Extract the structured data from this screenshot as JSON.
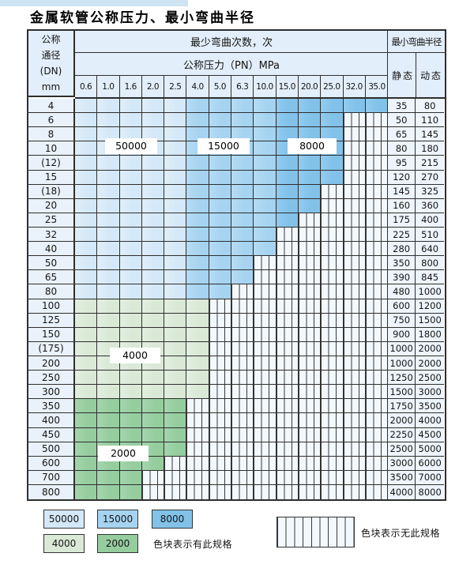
{
  "title": "金属软管公称压力、最小弯曲半径",
  "colors": {
    "blue_50000": "#d5e8f7",
    "blue_15000": "#a6d4f0",
    "blue_8000": "#82c2e9",
    "green_4000": "#d9e9d6",
    "green_2000": "#96cd9f",
    "hatch_bg": "#f3f8fc",
    "header_bg": "#e2eef9",
    "dn_bg": "#e9f2fa",
    "value_bg": "#edf4fb",
    "grid_line": "#2e2e2e"
  },
  "header": {
    "dn_lines": [
      "公称",
      "通径",
      "(DN)",
      "mm"
    ],
    "cycles_label": "最少弯曲次数，次",
    "pressure_label": "公称压力（PN）MPa",
    "radius_label": "最小弯曲半径",
    "static_label": "静 态",
    "dynamic_label": "动 态",
    "pressures": [
      "0.6",
      "1.0",
      "1.6",
      "2.0",
      "2.5",
      "4.0",
      "5.0",
      "6.3",
      "10.0",
      "15.0",
      "20.0",
      "25.0",
      "32.0",
      "35.0"
    ]
  },
  "overlay_labels": {
    "l50000": "50000",
    "l15000": "15000",
    "l8000": "8000",
    "l4000": "4000",
    "l2000": "2000"
  },
  "chart_data": {
    "type": "table",
    "pressure_columns": [
      "0.6",
      "1.0",
      "1.6",
      "2.0",
      "2.5",
      "4.0",
      "5.0",
      "6.3",
      "10.0",
      "15.0",
      "20.0",
      "25.0",
      "32.0",
      "35.0"
    ],
    "cycle_bands": {
      "blue_rows_DN4_80": {
        "50000": [
          "0.6",
          "1.0",
          "1.6",
          "2.0",
          "2.5"
        ],
        "15000": [
          "4.0",
          "5.0",
          "6.3",
          "10.0"
        ],
        "8000": [
          "15.0",
          "20.0",
          "25.0",
          "32.0",
          "35.0"
        ]
      },
      "green_rows_DN100_300": "4000",
      "green_rows_DN350_800": "2000"
    },
    "rows": [
      {
        "dn": "4",
        "max_pn": "35.0",
        "palette": "blue",
        "static": "35",
        "dynamic": "80"
      },
      {
        "dn": "6",
        "max_pn": "25.0",
        "palette": "blue",
        "static": "50",
        "dynamic": "110"
      },
      {
        "dn": "8",
        "max_pn": "25.0",
        "palette": "blue",
        "static": "65",
        "dynamic": "145"
      },
      {
        "dn": "10",
        "max_pn": "25.0",
        "palette": "blue",
        "static": "80",
        "dynamic": "180"
      },
      {
        "dn": "(12)",
        "max_pn": "25.0",
        "palette": "blue",
        "static": "95",
        "dynamic": "215"
      },
      {
        "dn": "15",
        "max_pn": "25.0",
        "palette": "blue",
        "static": "120",
        "dynamic": "270"
      },
      {
        "dn": "(18)",
        "max_pn": "20.0",
        "palette": "blue",
        "static": "145",
        "dynamic": "325"
      },
      {
        "dn": "20",
        "max_pn": "20.0",
        "palette": "blue",
        "static": "160",
        "dynamic": "360"
      },
      {
        "dn": "25",
        "max_pn": "15.0",
        "palette": "blue",
        "static": "175",
        "dynamic": "400"
      },
      {
        "dn": "32",
        "max_pn": "10.0",
        "palette": "blue",
        "static": "225",
        "dynamic": "510"
      },
      {
        "dn": "40",
        "max_pn": "10.0",
        "palette": "blue",
        "static": "280",
        "dynamic": "640"
      },
      {
        "dn": "50",
        "max_pn": "6.3",
        "palette": "blue",
        "static": "350",
        "dynamic": "800"
      },
      {
        "dn": "65",
        "max_pn": "6.3",
        "palette": "blue",
        "static": "390",
        "dynamic": "845"
      },
      {
        "dn": "80",
        "max_pn": "5.0",
        "palette": "blue",
        "static": "480",
        "dynamic": "1000"
      },
      {
        "dn": "100",
        "max_pn": "4.0",
        "palette": "g4000",
        "static": "600",
        "dynamic": "1200"
      },
      {
        "dn": "125",
        "max_pn": "4.0",
        "palette": "g4000",
        "static": "750",
        "dynamic": "1500"
      },
      {
        "dn": "150",
        "max_pn": "4.0",
        "palette": "g4000",
        "static": "900",
        "dynamic": "1800"
      },
      {
        "dn": "(175)",
        "max_pn": "4.0",
        "palette": "g4000",
        "static": "1000",
        "dynamic": "2000"
      },
      {
        "dn": "200",
        "max_pn": "4.0",
        "palette": "g4000",
        "static": "1000",
        "dynamic": "2000"
      },
      {
        "dn": "250",
        "max_pn": "4.0",
        "palette": "g4000",
        "static": "1250",
        "dynamic": "2500"
      },
      {
        "dn": "300",
        "max_pn": "4.0",
        "palette": "g4000",
        "static": "1500",
        "dynamic": "3000"
      },
      {
        "dn": "350",
        "max_pn": "2.5",
        "palette": "g2000",
        "static": "1750",
        "dynamic": "3500"
      },
      {
        "dn": "400",
        "max_pn": "2.5",
        "palette": "g2000",
        "static": "2000",
        "dynamic": "4000"
      },
      {
        "dn": "450",
        "max_pn": "2.5",
        "palette": "g2000",
        "static": "2250",
        "dynamic": "4500"
      },
      {
        "dn": "500",
        "max_pn": "2.5",
        "palette": "g2000",
        "static": "2500",
        "dynamic": "5000"
      },
      {
        "dn": "600",
        "max_pn": "2.0",
        "palette": "g2000",
        "static": "3000",
        "dynamic": "6000"
      },
      {
        "dn": "700",
        "max_pn": "1.6",
        "palette": "g2000",
        "static": "3500",
        "dynamic": "7000"
      },
      {
        "dn": "800",
        "max_pn": "1.6",
        "palette": "g2000",
        "static": "4000",
        "dynamic": "8000"
      }
    ]
  },
  "legend": {
    "blue": [
      {
        "label": "50000"
      },
      {
        "label": "15000"
      },
      {
        "label": "8000"
      }
    ],
    "green": [
      {
        "label": "4000"
      },
      {
        "label": "2000"
      }
    ],
    "note_has": "色块表示有此规格",
    "note_none": "色块表示无此规格"
  }
}
